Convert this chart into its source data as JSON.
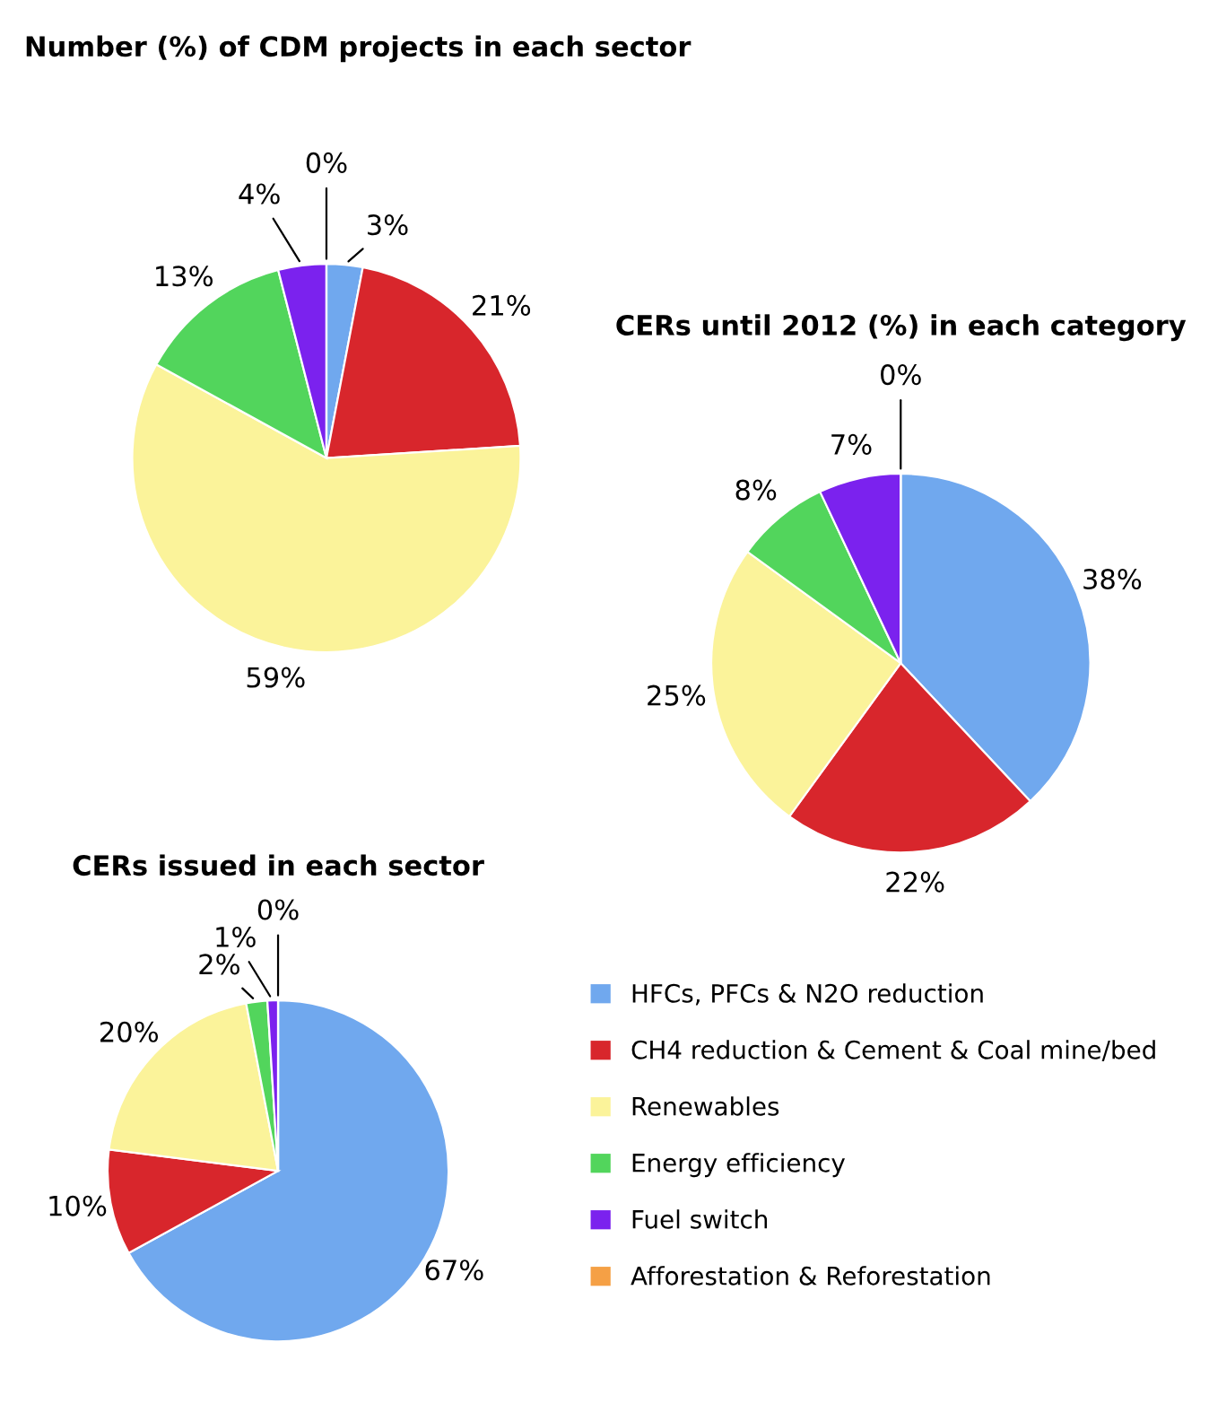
{
  "chart_data": [
    {
      "type": "pie",
      "title": "Number (%) of CDM projects in each sector",
      "categories": [
        "HFCs, PFCs & N2O reduction",
        "CH4 reduction & Cement & Coal mine/bed",
        "Renewables",
        "Energy efficiency",
        "Fuel switch",
        "Afforestation & Reforestation"
      ],
      "values": [
        3,
        21,
        59,
        13,
        4,
        0
      ],
      "colors": [
        "#70a8ee",
        "#d8262c",
        "#fbf39a",
        "#52d55c",
        "#7b22ee",
        "#f5a045"
      ],
      "value_labels": [
        "3%",
        "21%",
        "59%",
        "13%",
        "4%",
        "0%"
      ],
      "legend": "bottom right"
    },
    {
      "type": "pie",
      "title": "CERs until 2012 (%) in each category",
      "categories": [
        null,
        null,
        null,
        null,
        null,
        null
      ],
      "values": [
        38,
        22,
        25,
        8,
        7,
        0
      ],
      "colors": [
        "#70a8ee",
        "#d8262c",
        "#fbf39a",
        "#52d55c",
        "#7b22ee",
        "#f5a045"
      ],
      "value_labels": [
        "38%",
        "22%",
        "25%",
        "8%",
        "7%",
        "0%"
      ]
    },
    {
      "type": "pie",
      "title": "CERs issued in each sector",
      "categories": [
        null,
        null,
        null,
        null,
        null,
        null
      ],
      "values": [
        67,
        10,
        20,
        2,
        1,
        0
      ],
      "colors": [
        "#70a8ee",
        "#d8262c",
        "#fbf39a",
        "#52d55c",
        "#7b22ee",
        "#f5a045"
      ],
      "value_labels": [
        "67%",
        "10%",
        "20%",
        "2%",
        "1%",
        "0%"
      ]
    }
  ]
}
